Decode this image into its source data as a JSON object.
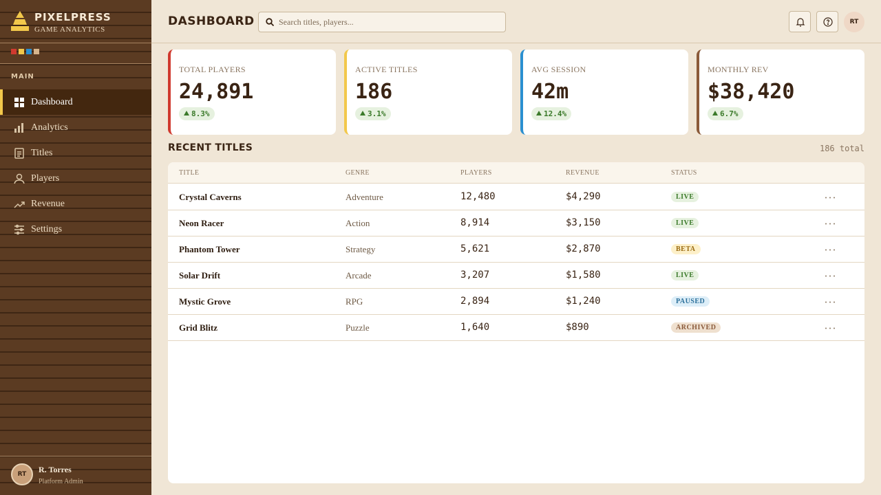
{
  "brand": {
    "name": "PIXELPRESS",
    "tagline": "GAME ANALYTICS"
  },
  "sidebar": {
    "section": "MAIN",
    "nav": [
      "Dashboard",
      "Analytics",
      "Titles",
      "Players",
      "Revenue",
      "Settings"
    ],
    "user": {
      "initials": "RT",
      "name": "R. Torres",
      "role": "Platform Admin"
    }
  },
  "header": {
    "title": "DASHBOARD",
    "search_placeholder": "Search titles, players...",
    "avatar": "RT"
  },
  "stats": [
    {
      "label": "TOTAL PLAYERS",
      "value": "24,891",
      "change": "8.3%"
    },
    {
      "label": "ACTIVE TITLES",
      "value": "186",
      "change": "3.1%"
    },
    {
      "label": "AVG SESSION",
      "value": "42m",
      "change": "12.4%"
    },
    {
      "label": "MONTHLY REV",
      "value": "$38,420",
      "change": "6.7%"
    }
  ],
  "recent": {
    "title": "RECENT TITLES",
    "count": "186 total",
    "table": {
      "headers": [
        "TITLE",
        "GENRE",
        "PLAYERS",
        "REVENUE",
        "STATUS"
      ],
      "rows": [
        [
          "Crystal Caverns",
          "Adventure",
          "12,480",
          "$4,290",
          "LIVE"
        ],
        [
          "Neon Racer",
          "Action",
          "8,914",
          "$3,150",
          "LIVE"
        ],
        [
          "Phantom Tower",
          "Strategy",
          "5,621",
          "$2,870",
          "BETA"
        ],
        [
          "Solar Drift",
          "Arcade",
          "3,207",
          "$1,580",
          "LIVE"
        ],
        [
          "Mystic Grove",
          "RPG",
          "2,894",
          "$1,240",
          "PAUSED"
        ],
        [
          "Grid Blitz",
          "Puzzle",
          "1,640",
          "$890",
          "ARCHIVED"
        ]
      ]
    }
  }
}
